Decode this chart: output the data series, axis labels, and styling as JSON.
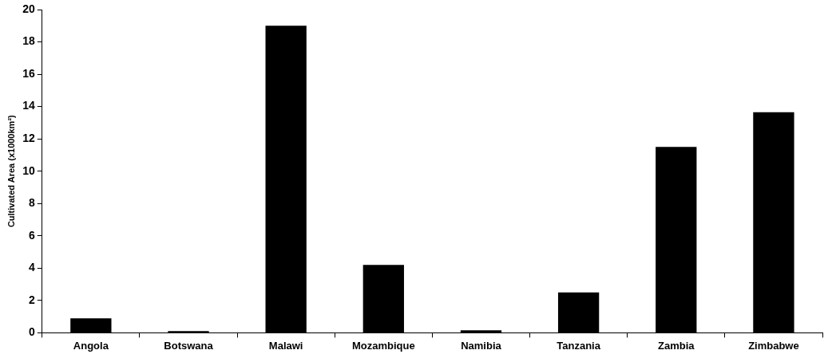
{
  "chart_data": {
    "type": "bar",
    "ylabel": "Cultivated Area (x1000km²)",
    "categories": [
      "Angola",
      "Botswana",
      "Malawi",
      "Mozambique",
      "Namibia",
      "Tanzania",
      "Zambia",
      "Zimbabwe"
    ],
    "values": [
      0.9,
      0.1,
      19.0,
      4.2,
      0.15,
      2.5,
      11.5,
      13.65
    ],
    "color": "#000000",
    "ylim": [
      0,
      20
    ],
    "yticks": [
      0,
      2,
      4,
      6,
      8,
      10,
      12,
      14,
      16,
      18,
      20
    ],
    "grid": false,
    "legend": false
  }
}
